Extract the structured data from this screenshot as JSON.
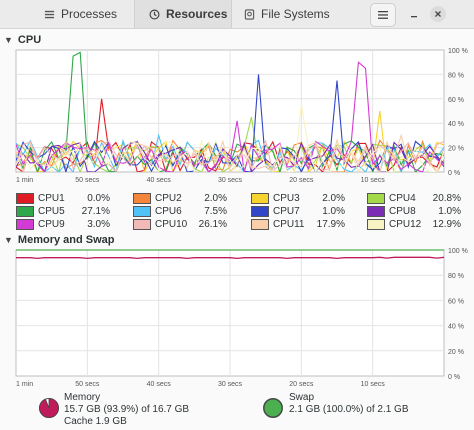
{
  "tabs": [
    {
      "label": "Processes",
      "icon": "processes-icon"
    },
    {
      "label": "Resources",
      "icon": "clock-icon"
    },
    {
      "label": "File Systems",
      "icon": "disk-icon"
    }
  ],
  "window": {
    "menu_icon": "hamburger-menu-icon",
    "minimize_icon": "minimize-icon",
    "close_icon": "close-icon"
  },
  "cpu": {
    "title": "CPU",
    "y_ticks": [
      "100 %",
      "80 %",
      "60 %",
      "40 %",
      "20 %",
      "0 %"
    ],
    "x_ticks": [
      "1 min",
      "50 secs",
      "40 secs",
      "30 secs",
      "20 secs",
      "10 secs"
    ],
    "legend": [
      {
        "name": "CPU1",
        "value": "0.0%",
        "color": "#e01b24"
      },
      {
        "name": "CPU2",
        "value": "2.0%",
        "color": "#f5853a"
      },
      {
        "name": "CPU3",
        "value": "2.0%",
        "color": "#f6d32d"
      },
      {
        "name": "CPU4",
        "value": "20.8%",
        "color": "#a4d94a"
      },
      {
        "name": "CPU5",
        "value": "27.1%",
        "color": "#2ea84a"
      },
      {
        "name": "CPU6",
        "value": "7.5%",
        "color": "#4fc3f7"
      },
      {
        "name": "CPU7",
        "value": "1.0%",
        "color": "#3046c8"
      },
      {
        "name": "CPU8",
        "value": "1.0%",
        "color": "#7b2db5"
      },
      {
        "name": "CPU9",
        "value": "3.0%",
        "color": "#d43bd4"
      },
      {
        "name": "CPU10",
        "value": "26.1%",
        "color": "#f2b9b9"
      },
      {
        "name": "CPU11",
        "value": "17.9%",
        "color": "#f8cfa8"
      },
      {
        "name": "CPU12",
        "value": "12.9%",
        "color": "#f7f3c2"
      }
    ]
  },
  "memory": {
    "title": "Memory and Swap",
    "y_ticks": [
      "100 %",
      "80 %",
      "60 %",
      "40 %",
      "20 %",
      "0 %"
    ],
    "x_ticks": [
      "1 min",
      "50 secs",
      "40 secs",
      "30 secs",
      "20 secs",
      "10 secs"
    ],
    "memory_label": "Memory",
    "memory_usage": "15.7 GB (93.9%) of 16.7 GB",
    "memory_cache": "Cache 1.9 GB",
    "memory_percent": 93.9,
    "memory_color": "#c01c5c",
    "swap_label": "Swap",
    "swap_usage": "2.1 GB (100.0%) of 2.1 GB",
    "swap_percent": 100.0,
    "swap_color": "#4caf50"
  }
}
